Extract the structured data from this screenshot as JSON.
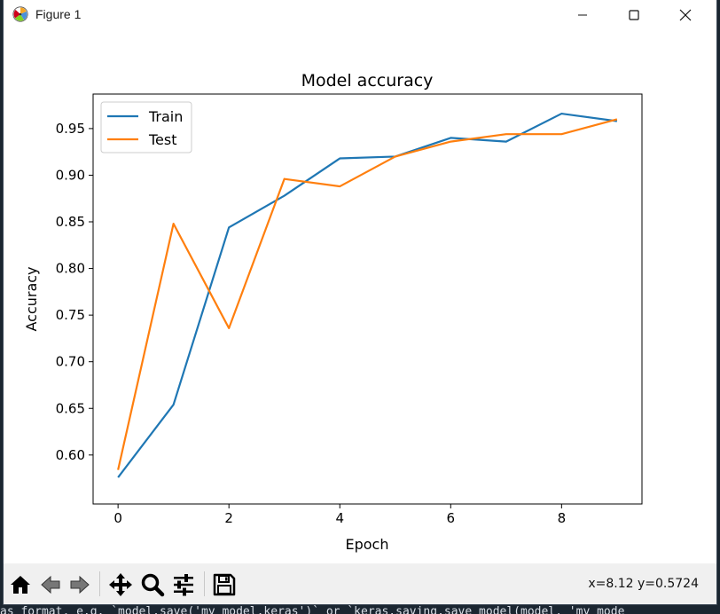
{
  "window": {
    "title": "Figure 1",
    "minimize_icon": "minimize-icon",
    "maximize_icon": "maximize-icon",
    "close_icon": "close-icon"
  },
  "terminal": {
    "bottom_text": "as_format, e.g. `model.save('my_model.keras')` or `keras.saving.save_model(model, 'my_mode"
  },
  "toolbar": {
    "buttons": [
      {
        "name": "home-button",
        "icon": "home-icon"
      },
      {
        "name": "back-button",
        "icon": "back-arrow-icon"
      },
      {
        "name": "forward-button",
        "icon": "forward-arrow-icon"
      },
      {
        "name": "pan-button",
        "icon": "move-icon"
      },
      {
        "name": "zoom-button",
        "icon": "magnifier-icon"
      },
      {
        "name": "configure-subplots-button",
        "icon": "sliders-icon"
      },
      {
        "name": "save-button",
        "icon": "floppy-disk-icon"
      }
    ],
    "coords": "x=8.12 y=0.5724"
  },
  "chart_data": {
    "type": "line",
    "title": "Model accuracy",
    "xlabel": "Epoch",
    "ylabel": "Accuracy",
    "x": [
      0,
      1,
      2,
      3,
      4,
      5,
      6,
      7,
      8,
      9
    ],
    "xlim": [
      -0.45,
      9.45
    ],
    "ylim": [
      0.5475,
      0.987
    ],
    "xticks": [
      0,
      2,
      4,
      6,
      8
    ],
    "xtick_labels": [
      "0",
      "2",
      "4",
      "6",
      "8"
    ],
    "yticks": [
      0.6,
      0.65,
      0.7,
      0.75,
      0.8,
      0.85,
      0.9,
      0.95
    ],
    "ytick_labels": [
      "0.60",
      "0.65",
      "0.70",
      "0.75",
      "0.80",
      "0.85",
      "0.90",
      "0.95"
    ],
    "grid": false,
    "legend_position": "upper-left",
    "series": [
      {
        "name": "Train",
        "color": "#1f77b4",
        "values": [
          0.576,
          0.654,
          0.844,
          0.878,
          0.918,
          0.92,
          0.94,
          0.936,
          0.966,
          0.958
        ]
      },
      {
        "name": "Test",
        "color": "#ff7f0e",
        "values": [
          0.584,
          0.848,
          0.736,
          0.896,
          0.888,
          0.92,
          0.936,
          0.944,
          0.944,
          0.96
        ]
      }
    ]
  }
}
